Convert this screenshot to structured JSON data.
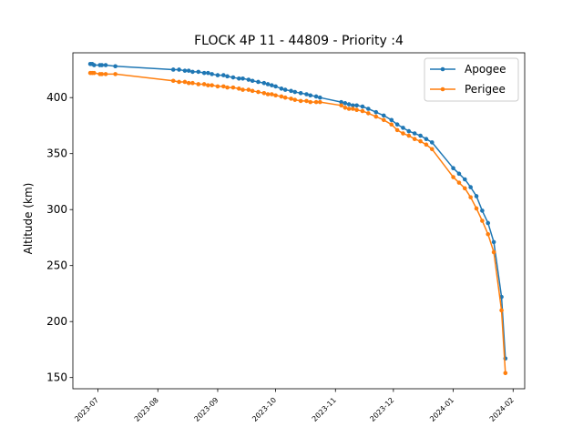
{
  "chart_data": {
    "type": "line",
    "title": "FLOCK 4P 11 - 44809 - Priority :4",
    "xlabel": "",
    "ylabel": "Altitude (km)",
    "x_type": "date",
    "xlim": [
      "2023-06-18",
      "2024-02-07"
    ],
    "ylim": [
      140,
      440
    ],
    "x_ticks": [
      "2023-07",
      "2023-08",
      "2023-09",
      "2023-10",
      "2023-11",
      "2023-12",
      "2024-01",
      "2024-02"
    ],
    "x_tick_dates": [
      "2023-07-01",
      "2023-08-01",
      "2023-09-01",
      "2023-10-01",
      "2023-11-01",
      "2023-12-01",
      "2024-01-01",
      "2024-02-01"
    ],
    "y_ticks": [
      150,
      200,
      250,
      300,
      350,
      400
    ],
    "legend": "top-right",
    "grid": false,
    "series": [
      {
        "name": "Apogee",
        "color": "#1f77b4",
        "x": [
          "2023-06-27",
          "2023-06-28",
          "2023-06-29",
          "2023-07-02",
          "2023-07-03",
          "2023-07-05",
          "2023-07-10",
          "2023-08-09",
          "2023-08-12",
          "2023-08-15",
          "2023-08-17",
          "2023-08-19",
          "2023-08-22",
          "2023-08-25",
          "2023-08-27",
          "2023-08-29",
          "2023-09-01",
          "2023-09-04",
          "2023-09-06",
          "2023-09-09",
          "2023-09-12",
          "2023-09-14",
          "2023-09-17",
          "2023-09-19",
          "2023-09-22",
          "2023-09-25",
          "2023-09-27",
          "2023-09-29",
          "2023-10-01",
          "2023-10-04",
          "2023-10-06",
          "2023-10-09",
          "2023-10-11",
          "2023-10-14",
          "2023-10-17",
          "2023-10-19",
          "2023-10-22",
          "2023-10-24",
          "2023-11-04",
          "2023-11-06",
          "2023-11-08",
          "2023-11-10",
          "2023-11-12",
          "2023-11-15",
          "2023-11-18",
          "2023-11-22",
          "2023-11-26",
          "2023-11-30",
          "2023-12-03",
          "2023-12-06",
          "2023-12-09",
          "2023-12-12",
          "2023-12-15",
          "2023-12-18",
          "2023-12-21",
          "2024-01-01",
          "2024-01-04",
          "2024-01-07",
          "2024-01-10",
          "2024-01-13",
          "2024-01-16",
          "2024-01-19",
          "2024-01-22",
          "2024-01-26",
          "2024-01-28"
        ],
        "y": [
          430,
          430,
          429,
          429,
          429,
          429,
          428,
          425,
          425,
          424,
          424,
          423,
          423,
          422,
          422,
          421,
          420,
          420,
          419,
          418,
          417,
          417,
          416,
          415,
          414,
          413,
          412,
          411,
          410,
          408,
          407,
          406,
          405,
          404,
          403,
          402,
          401,
          400,
          396,
          395,
          394,
          393,
          393,
          392,
          390,
          387,
          384,
          380,
          376,
          373,
          370,
          368,
          366,
          363,
          360,
          337,
          332,
          327,
          320,
          312,
          299,
          288,
          271,
          222,
          167
        ]
      },
      {
        "name": "Perigee",
        "color": "#ff7f0e",
        "x": [
          "2023-06-27",
          "2023-06-28",
          "2023-06-29",
          "2023-07-02",
          "2023-07-03",
          "2023-07-05",
          "2023-07-10",
          "2023-08-09",
          "2023-08-12",
          "2023-08-15",
          "2023-08-17",
          "2023-08-19",
          "2023-08-22",
          "2023-08-25",
          "2023-08-27",
          "2023-08-29",
          "2023-09-01",
          "2023-09-04",
          "2023-09-06",
          "2023-09-09",
          "2023-09-12",
          "2023-09-14",
          "2023-09-17",
          "2023-09-19",
          "2023-09-22",
          "2023-09-25",
          "2023-09-27",
          "2023-09-29",
          "2023-10-01",
          "2023-10-04",
          "2023-10-06",
          "2023-10-09",
          "2023-10-11",
          "2023-10-14",
          "2023-10-17",
          "2023-10-19",
          "2023-10-22",
          "2023-10-24",
          "2023-11-04",
          "2023-11-06",
          "2023-11-08",
          "2023-11-10",
          "2023-11-12",
          "2023-11-15",
          "2023-11-18",
          "2023-11-22",
          "2023-11-26",
          "2023-11-30",
          "2023-12-03",
          "2023-12-06",
          "2023-12-09",
          "2023-12-12",
          "2023-12-15",
          "2023-12-18",
          "2023-12-21",
          "2024-01-01",
          "2024-01-04",
          "2024-01-07",
          "2024-01-10",
          "2024-01-13",
          "2024-01-16",
          "2024-01-19",
          "2024-01-22",
          "2024-01-26",
          "2024-01-28"
        ],
        "y": [
          422,
          422,
          422,
          421,
          421,
          421,
          421,
          415,
          414,
          414,
          413,
          413,
          412,
          412,
          411,
          411,
          410,
          410,
          409,
          409,
          408,
          407,
          407,
          406,
          405,
          404,
          403,
          403,
          402,
          401,
          400,
          399,
          398,
          397,
          397,
          396,
          396,
          396,
          393,
          391,
          390,
          390,
          389,
          388,
          386,
          383,
          380,
          376,
          371,
          368,
          366,
          363,
          361,
          358,
          354,
          329,
          324,
          319,
          311,
          301,
          290,
          278,
          262,
          210,
          154
        ]
      }
    ]
  }
}
